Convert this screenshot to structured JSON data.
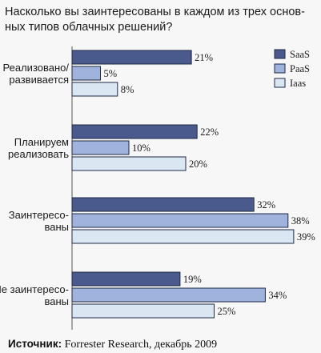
{
  "colors": {
    "background": "#f7f7f7",
    "border": "#1f2a44"
  },
  "chart_data": {
    "type": "bar",
    "orientation": "horizontal",
    "title": "Насколько вы заинтересованы в каждом из трех основных типов облачных решений?",
    "title_lines": [
      "Насколько вы заинтересованы в каждом из трех основ-",
      "ных типов облачных решений?"
    ],
    "categories": [
      "Реализовано/ развивается",
      "Планируем реализовать",
      "Заинтересо- ваны",
      "Не заинтересо- ваны"
    ],
    "category_lines": [
      [
        "Реализовано/",
        "развивается"
      ],
      [
        "Планируем",
        "реализовать"
      ],
      [
        "Заинтересо-",
        "ваны"
      ],
      [
        "Не заинтересо-",
        "ваны"
      ]
    ],
    "series": [
      {
        "name": "SaaS",
        "color": "#4a5a8c",
        "values": [
          21,
          22,
          32,
          19
        ]
      },
      {
        "name": "PaaS",
        "color": "#9fb3dc",
        "values": [
          5,
          10,
          38,
          34
        ]
      },
      {
        "name": "Iaas",
        "color": "#dbe6f3",
        "values": [
          8,
          20,
          39,
          25
        ]
      }
    ],
    "value_suffix": "%",
    "xlim": [
      0,
      40
    ],
    "grid": false,
    "legend_position": "top-right"
  },
  "source": {
    "label": "Источник:",
    "text": " Forrester Research, декабрь 2009"
  }
}
